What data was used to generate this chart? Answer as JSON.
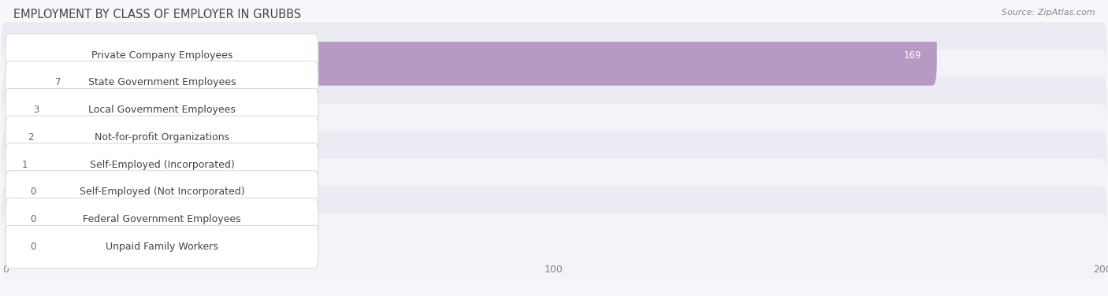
{
  "title": "EMPLOYMENT BY CLASS OF EMPLOYER IN GRUBBS",
  "source": "Source: ZipAtlas.com",
  "categories": [
    "Private Company Employees",
    "State Government Employees",
    "Local Government Employees",
    "Not-for-profit Organizations",
    "Self-Employed (Incorporated)",
    "Self-Employed (Not Incorporated)",
    "Federal Government Employees",
    "Unpaid Family Workers"
  ],
  "values": [
    169,
    7,
    3,
    2,
    1,
    0,
    0,
    0
  ],
  "bar_colors": [
    "#b899c3",
    "#6ececa",
    "#a9b8e8",
    "#f4a0b5",
    "#f5c89a",
    "#f4a090",
    "#a8c4e8",
    "#c4aad8"
  ],
  "row_bg_even": "#ebebf3",
  "row_bg_odd": "#f3f3f8",
  "label_bg_color": "#ffffff",
  "xlim": [
    0,
    200
  ],
  "xticks": [
    0,
    100,
    200
  ],
  "background_color": "#f8f8fc",
  "title_fontsize": 10.5,
  "label_fontsize": 9,
  "value_fontsize": 8.5,
  "value_color_inside": "#ffffff",
  "value_color_outside": "#666666"
}
